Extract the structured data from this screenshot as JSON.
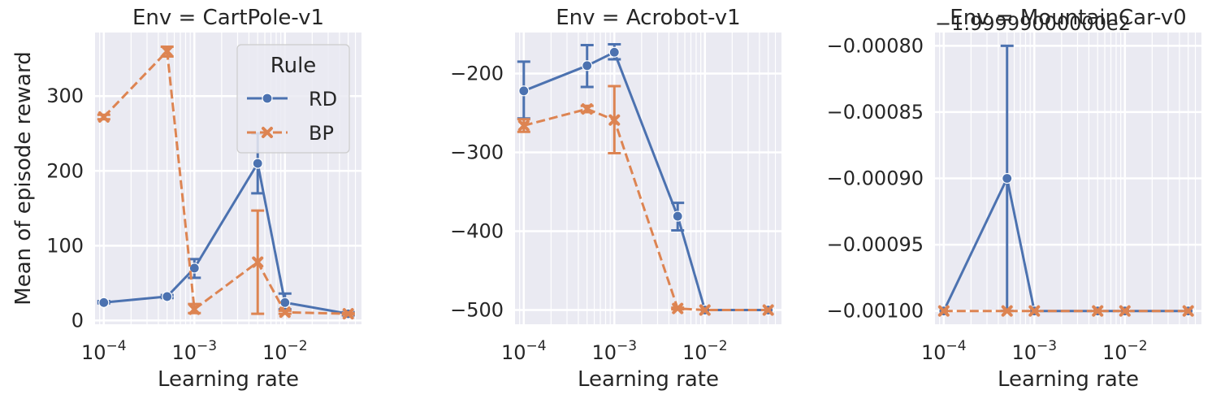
{
  "legend": {
    "title": "Rule",
    "entries": [
      {
        "name": "RD",
        "color": "#4c72b0",
        "marker": "circle",
        "dash": "solid"
      },
      {
        "name": "BP",
        "color": "#dd8452",
        "marker": "x",
        "dash": "dashed"
      }
    ]
  },
  "chart_data": [
    {
      "type": "line",
      "title": "Env = CartPole-v1",
      "xlabel": "Learning rate",
      "ylabel": "Mean of episode reward",
      "xscale": "log",
      "xlim": [
        8e-05,
        0.07
      ],
      "ylim": [
        -5,
        385
      ],
      "yticks": [
        0,
        100,
        200,
        300
      ],
      "ytick_labels": [
        "0",
        "100",
        "200",
        "300"
      ],
      "xticks": [
        0.0001,
        0.001,
        0.01
      ],
      "xtick_labels": [
        "10−4",
        "10−3",
        "10−2"
      ],
      "grid": true,
      "legend_position": "top-right",
      "series": [
        {
          "name": "RD",
          "x": [
            0.0001,
            0.0005,
            0.001,
            0.005,
            0.01,
            0.05
          ],
          "y": [
            24,
            32,
            70,
            210,
            24,
            9
          ],
          "err_low": [
            23,
            30,
            57,
            170,
            15,
            7
          ],
          "err_high": [
            26,
            34,
            82,
            250,
            36,
            11
          ]
        },
        {
          "name": "BP",
          "x": [
            0.0001,
            0.0005,
            0.001,
            0.005,
            0.01,
            0.05
          ],
          "y": [
            272,
            360,
            15,
            78,
            11,
            9
          ],
          "err_low": [
            269,
            353,
            10,
            9,
            9,
            8
          ],
          "err_high": [
            275,
            366,
            22,
            147,
            13,
            10
          ]
        }
      ]
    },
    {
      "type": "line",
      "title": "Env = Acrobot-v1",
      "xlabel": "Learning rate",
      "ylabel": "",
      "xscale": "log",
      "xlim": [
        8e-05,
        0.07
      ],
      "ylim": [
        -518,
        -148
      ],
      "yticks": [
        -500,
        -400,
        -300,
        -200
      ],
      "ytick_labels": [
        "−500",
        "−400",
        "−300",
        "−200"
      ],
      "xticks": [
        0.0001,
        0.001,
        0.01
      ],
      "xtick_labels": [
        "10−4",
        "10−3",
        "10−2"
      ],
      "grid": true,
      "series": [
        {
          "name": "RD",
          "x": [
            0.0001,
            0.0005,
            0.001,
            0.005,
            0.01,
            0.05
          ],
          "y": [
            -222,
            -190,
            -173,
            -381,
            -500,
            -500
          ],
          "err_low": [
            -257,
            -217,
            -182,
            -399,
            -500,
            -500
          ],
          "err_high": [
            -185,
            -164,
            -163,
            -364,
            -500,
            -500
          ]
        },
        {
          "name": "BP",
          "x": [
            0.0001,
            0.0005,
            0.001,
            0.005,
            0.01,
            0.05
          ],
          "y": [
            -266,
            -245,
            -259,
            -498,
            -500,
            -500
          ],
          "err_low": [
            -274,
            -249,
            -301,
            -499,
            -500,
            -500
          ],
          "err_high": [
            -258,
            -241,
            -216,
            -497,
            -500,
            -500
          ]
        }
      ]
    },
    {
      "type": "line",
      "title": "Env = MountainCar-v0",
      "offset_text": "−1.99999000000e2",
      "xlabel": "Learning rate",
      "ylabel": "",
      "xscale": "log",
      "xlim": [
        8e-05,
        0.07
      ],
      "ylim": [
        -0.00101,
        -0.00079
      ],
      "yticks": [
        -0.001,
        -0.00095,
        -0.0009,
        -0.00085,
        -0.0008
      ],
      "ytick_labels": [
        "−0.00100",
        "−0.00095",
        "−0.00090",
        "−0.00085",
        "−0.00080"
      ],
      "xticks": [
        0.0001,
        0.001,
        0.01
      ],
      "xtick_labels": [
        "10−4",
        "10−3",
        "10−2"
      ],
      "grid": true,
      "series": [
        {
          "name": "RD",
          "x": [
            0.0001,
            0.0005,
            0.001,
            0.005,
            0.01,
            0.05
          ],
          "y": [
            -0.001,
            -0.0009,
            -0.001,
            -0.001,
            -0.001,
            -0.001
          ],
          "err_low": [
            -0.001,
            -0.001,
            -0.001,
            -0.001,
            -0.001,
            -0.001
          ],
          "err_high": [
            -0.001,
            -0.0008,
            -0.001,
            -0.001,
            -0.001,
            -0.001
          ]
        },
        {
          "name": "BP",
          "x": [
            0.0001,
            0.0005,
            0.001,
            0.005,
            0.01,
            0.05
          ],
          "y": [
            -0.001,
            -0.001,
            -0.001,
            -0.001,
            -0.001,
            -0.001
          ],
          "err_low": [
            -0.001,
            -0.001,
            -0.001,
            -0.001,
            -0.001,
            -0.001
          ],
          "err_high": [
            -0.001,
            -0.001,
            -0.001,
            -0.001,
            -0.001,
            -0.001
          ]
        }
      ]
    }
  ]
}
